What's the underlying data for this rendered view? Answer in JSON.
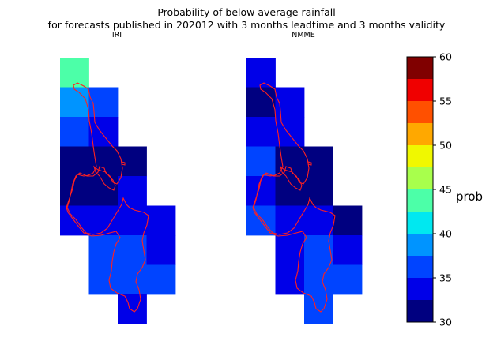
{
  "chart_data": {
    "type": "heatmap",
    "title": "Probability of below average rainfall",
    "title_line2": "for forecasts published in 202012 with 3 months leadtime and 3 months validity",
    "colorbar": {
      "label": "prob",
      "min": 30,
      "max": 60,
      "ticks": [
        30,
        35,
        40,
        45,
        50,
        55,
        60
      ],
      "bins": [
        30,
        32.5,
        35,
        37.5,
        40,
        42.5,
        45,
        47.5,
        50,
        52.5,
        55,
        57.5,
        60
      ],
      "colors": [
        "#000080",
        "#0000e8",
        "#0044ff",
        "#0094ff",
        "#00e8f0",
        "#4cffa8",
        "#a8ff4c",
        "#f0f800",
        "#ffa800",
        "#ff5000",
        "#f00000",
        "#800000"
      ]
    },
    "panels": [
      {
        "subtitle": "IRI",
        "grid_columns": 4,
        "grid_rows": 9,
        "cells": [
          {
            "col": 0,
            "row": 0,
            "value": 42.5
          },
          {
            "col": 0,
            "row": 1,
            "value": 37.5
          },
          {
            "col": 1,
            "row": 1,
            "value": 35.0
          },
          {
            "col": 0,
            "row": 2,
            "value": 35.0
          },
          {
            "col": 1,
            "row": 2,
            "value": 32.5
          },
          {
            "col": 0,
            "row": 3,
            "value": 31.0
          },
          {
            "col": 1,
            "row": 3,
            "value": 31.0
          },
          {
            "col": 2,
            "row": 3,
            "value": 31.0
          },
          {
            "col": 0,
            "row": 4,
            "value": 31.0
          },
          {
            "col": 1,
            "row": 4,
            "value": 31.0
          },
          {
            "col": 2,
            "row": 4,
            "value": 33.0
          },
          {
            "col": 0,
            "row": 5,
            "value": 33.0
          },
          {
            "col": 1,
            "row": 5,
            "value": 33.0
          },
          {
            "col": 2,
            "row": 5,
            "value": 33.0
          },
          {
            "col": 3,
            "row": 5,
            "value": 33.0
          },
          {
            "col": 1,
            "row": 6,
            "value": 35.0
          },
          {
            "col": 2,
            "row": 6,
            "value": 35.0
          },
          {
            "col": 3,
            "row": 6,
            "value": 33.0
          },
          {
            "col": 1,
            "row": 7,
            "value": 35.0
          },
          {
            "col": 2,
            "row": 7,
            "value": 35.0
          },
          {
            "col": 3,
            "row": 7,
            "value": 35.0
          },
          {
            "col": 2,
            "row": 8,
            "value": 33.0
          }
        ]
      },
      {
        "subtitle": "NMME",
        "grid_columns": 4,
        "grid_rows": 9,
        "cells": [
          {
            "col": 0,
            "row": 0,
            "value": 33.0
          },
          {
            "col": 0,
            "row": 1,
            "value": 31.0
          },
          {
            "col": 1,
            "row": 1,
            "value": 33.0
          },
          {
            "col": 0,
            "row": 2,
            "value": 33.0
          },
          {
            "col": 1,
            "row": 2,
            "value": 33.0
          },
          {
            "col": 0,
            "row": 3,
            "value": 35.0
          },
          {
            "col": 1,
            "row": 3,
            "value": 31.0
          },
          {
            "col": 2,
            "row": 3,
            "value": 31.0
          },
          {
            "col": 0,
            "row": 4,
            "value": 33.0
          },
          {
            "col": 1,
            "row": 4,
            "value": 31.0
          },
          {
            "col": 2,
            "row": 4,
            "value": 31.0
          },
          {
            "col": 0,
            "row": 5,
            "value": 35.0
          },
          {
            "col": 1,
            "row": 5,
            "value": 33.0
          },
          {
            "col": 2,
            "row": 5,
            "value": 33.0
          },
          {
            "col": 3,
            "row": 5,
            "value": 31.0
          },
          {
            "col": 1,
            "row": 6,
            "value": 33.0
          },
          {
            "col": 2,
            "row": 6,
            "value": 35.0
          },
          {
            "col": 3,
            "row": 6,
            "value": 33.0
          },
          {
            "col": 1,
            "row": 7,
            "value": 33.0
          },
          {
            "col": 2,
            "row": 7,
            "value": 35.0
          },
          {
            "col": 3,
            "row": 7,
            "value": 35.0
          },
          {
            "col": 2,
            "row": 8,
            "value": 35.0
          }
        ]
      }
    ],
    "boundary_color": "#ff2020"
  }
}
